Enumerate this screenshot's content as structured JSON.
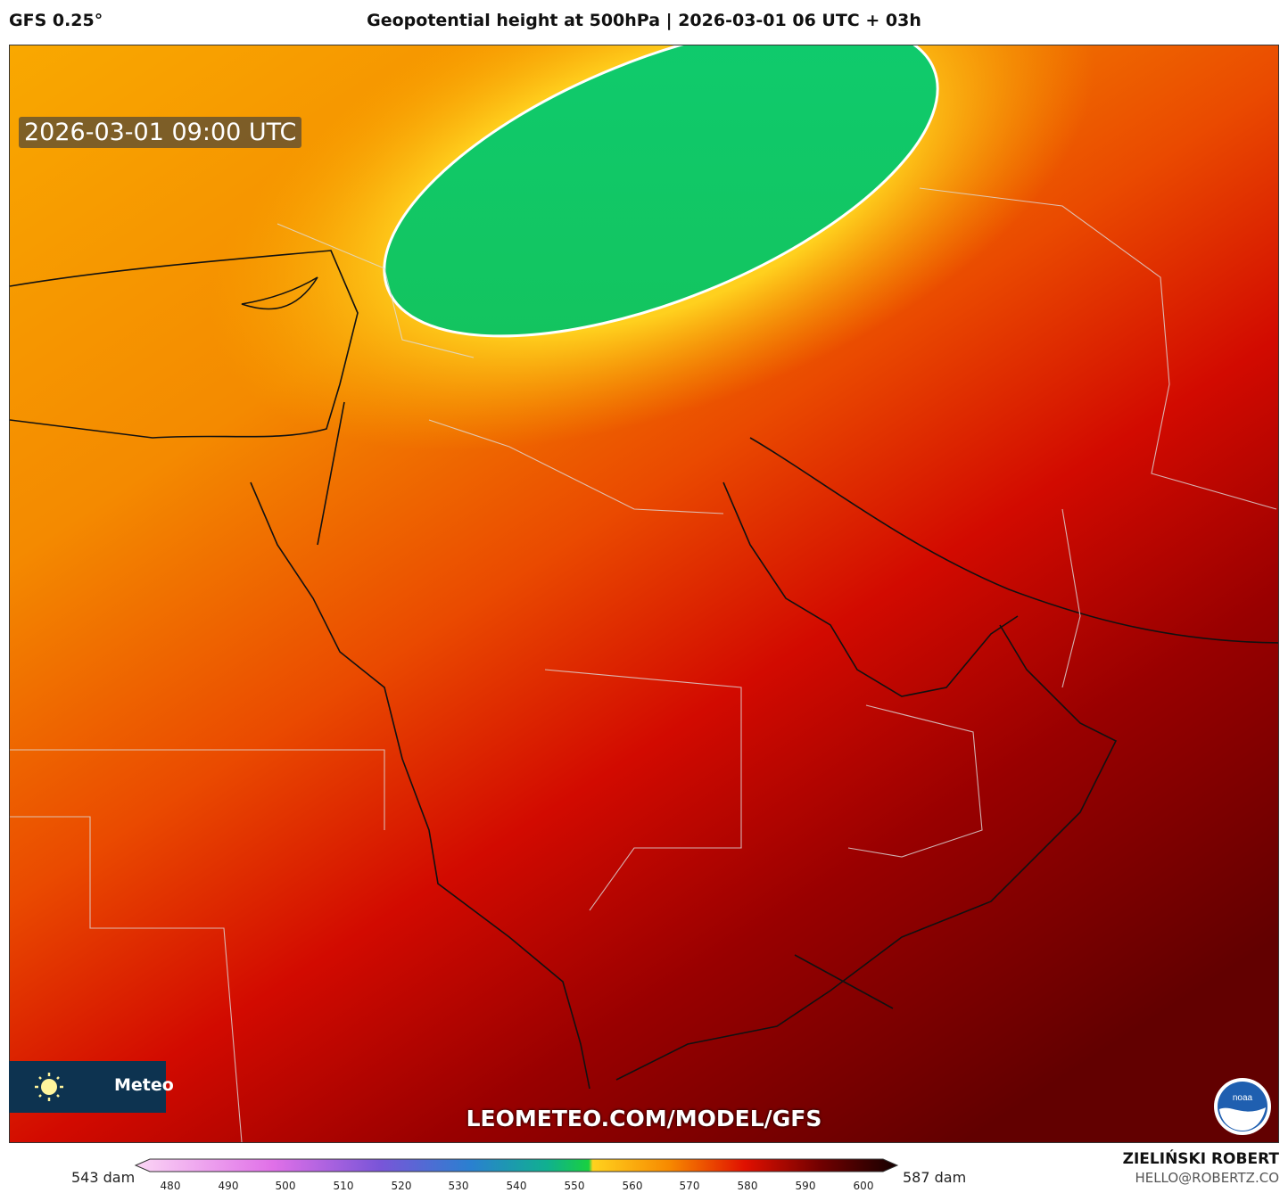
{
  "header": {
    "model": "GFS 0.25°",
    "title": "Geopotential height at 500hPa | 2026-03-01 06 UTC + 03h"
  },
  "map": {
    "valid_time": "2026-03-01 09:00 UTC",
    "watermark": "LEOMETEO.COM/MODEL/GFS",
    "brand_text": "Meteo",
    "field_min": "543 dam",
    "field_max": "587 dam",
    "colors": {
      "low_green": "#10c060",
      "yellow": "#ffd21e",
      "orange": "#f79a00",
      "red": "#d80000",
      "dark_red": "#6a0000"
    }
  },
  "legend": {
    "min_label": "543 dam",
    "max_label": "587 dam",
    "ticks": [
      "480",
      "490",
      "500",
      "510",
      "520",
      "530",
      "540",
      "550",
      "560",
      "570",
      "580",
      "590",
      "600"
    ]
  },
  "author": {
    "name": "ZIELIŃSKI ROBERT",
    "email": "HELLO@ROBERTZ.CO"
  },
  "icons": [
    "sun-logo-icon",
    "noaa-logo-icon"
  ]
}
